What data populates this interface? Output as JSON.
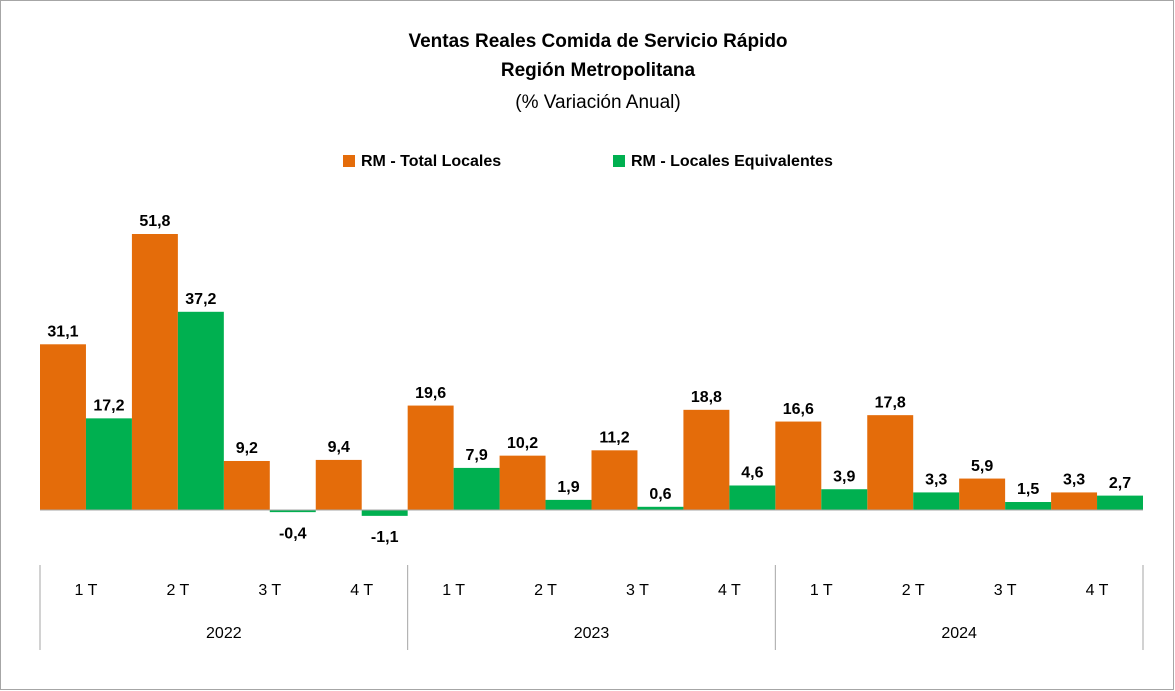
{
  "chart_data": {
    "type": "bar",
    "title": "Ventas Reales Comida de Servicio Rápido",
    "subtitle": "Región Metropolitana",
    "note": "(% Variación Anual)",
    "categories": [
      "1 T",
      "2 T",
      "3 T",
      "4 T",
      "1 T",
      "2 T",
      "3 T",
      "4 T",
      "1 T",
      "2 T",
      "3 T",
      "4 T"
    ],
    "groups": [
      "2022",
      "2023",
      "2024"
    ],
    "series": [
      {
        "name": "RM - Total Locales",
        "color": "#e46c0a",
        "values": [
          31.1,
          51.8,
          9.2,
          9.4,
          19.6,
          10.2,
          11.2,
          18.8,
          16.6,
          17.8,
          5.9,
          3.3
        ],
        "value_labels": [
          "31,1",
          "51,8",
          "9,2",
          "9,4",
          "19,6",
          "10,2",
          "11,2",
          "18,8",
          "16,6",
          "17,8",
          "5,9",
          "3,3"
        ]
      },
      {
        "name": "RM - Locales Equivalentes",
        "color": "#00b050",
        "values": [
          17.2,
          37.2,
          -0.4,
          -1.1,
          7.9,
          1.9,
          0.6,
          4.6,
          3.9,
          3.3,
          1.5,
          2.7
        ],
        "value_labels": [
          "17,2",
          "37,2",
          "-0,4",
          "-1,1",
          "7,9",
          "1,9",
          "0,6",
          "4,6",
          "3,9",
          "3,3",
          "1,5",
          "2,7"
        ]
      }
    ],
    "legend": "top"
  }
}
